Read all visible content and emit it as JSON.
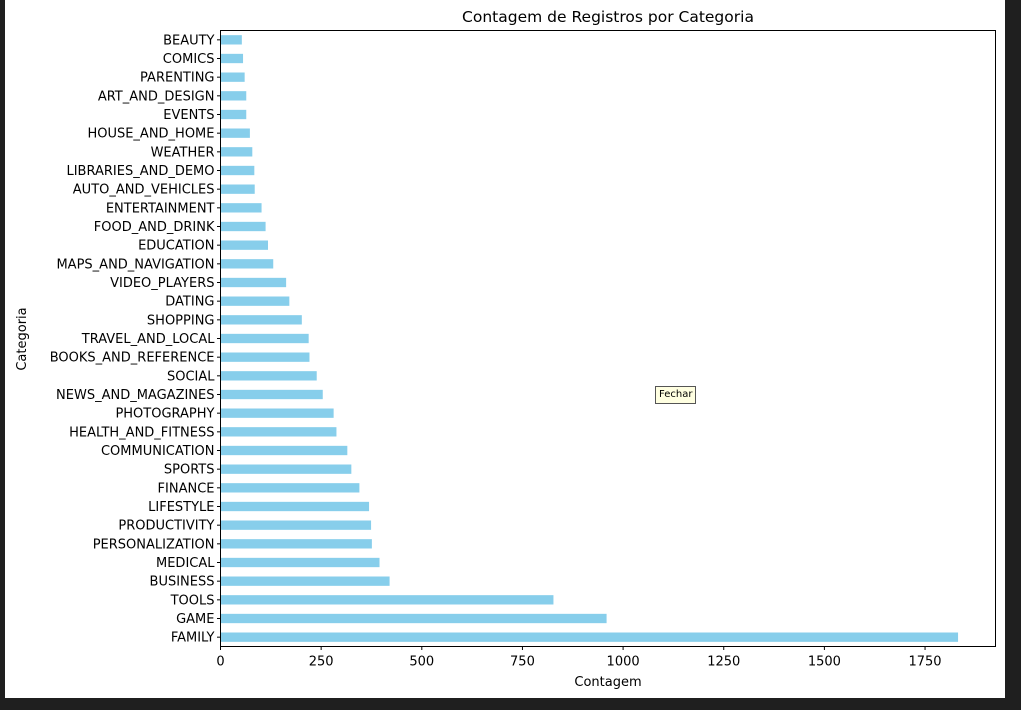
{
  "tooltip": {
    "label": "Fechar"
  },
  "chart_data": {
    "type": "bar",
    "orientation": "horizontal",
    "title": "Contagem de Registros por Categoria",
    "xlabel": "Contagem",
    "ylabel": "Categoria",
    "xlim": [
      0,
      1925
    ],
    "xticks": [
      0,
      250,
      500,
      750,
      1000,
      1250,
      1500,
      1750
    ],
    "bar_color": "#87ceeb",
    "grid": false,
    "categories": [
      "BEAUTY",
      "COMICS",
      "PARENTING",
      "ART_AND_DESIGN",
      "EVENTS",
      "HOUSE_AND_HOME",
      "WEATHER",
      "LIBRARIES_AND_DEMO",
      "AUTO_AND_VEHICLES",
      "ENTERTAINMENT",
      "FOOD_AND_DRINK",
      "EDUCATION",
      "MAPS_AND_NAVIGATION",
      "VIDEO_PLAYERS",
      "DATING",
      "SHOPPING",
      "TRAVEL_AND_LOCAL",
      "BOOKS_AND_REFERENCE",
      "SOCIAL",
      "NEWS_AND_MAGAZINES",
      "PHOTOGRAPHY",
      "HEALTH_AND_FITNESS",
      "COMMUNICATION",
      "SPORTS",
      "FINANCE",
      "LIFESTYLE",
      "PRODUCTIVITY",
      "PERSONALIZATION",
      "MEDICAL",
      "BUSINESS",
      "TOOLS",
      "GAME",
      "FAMILY"
    ],
    "values": [
      53,
      56,
      60,
      64,
      64,
      73,
      79,
      84,
      85,
      102,
      112,
      118,
      131,
      163,
      171,
      202,
      219,
      221,
      239,
      254,
      281,
      288,
      315,
      325,
      345,
      369,
      374,
      376,
      395,
      420,
      827,
      959,
      1832
    ]
  }
}
